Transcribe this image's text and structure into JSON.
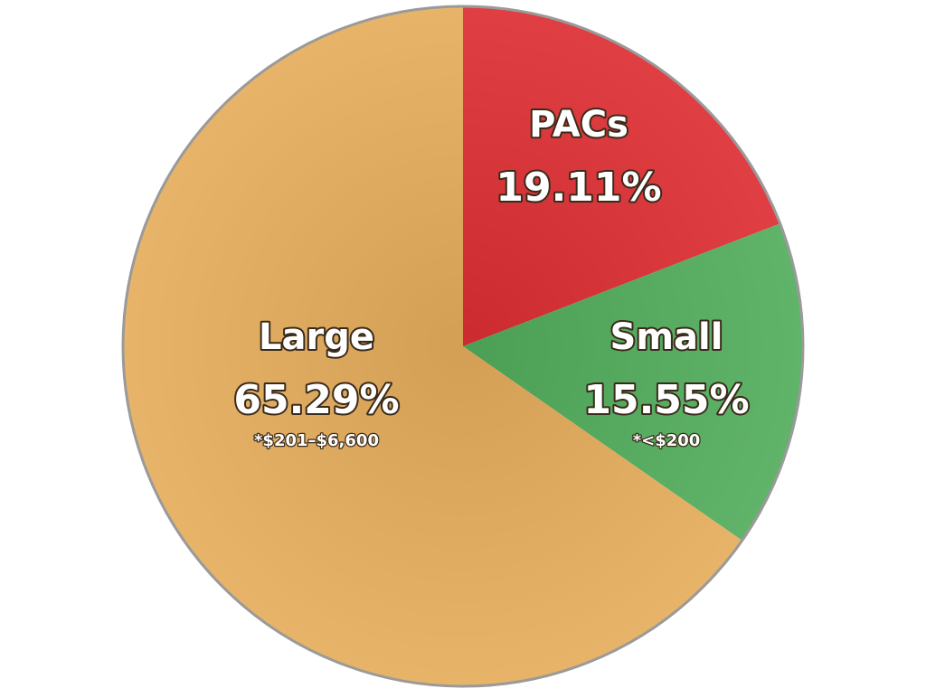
{
  "chart_data": {
    "type": "pie",
    "categories": [
      "PACs",
      "Small",
      "Large"
    ],
    "values": [
      19.11,
      15.55,
      65.29
    ],
    "value_labels": [
      "19.11%",
      "15.55%",
      "65.29%"
    ],
    "notes": [
      null,
      "*<$200",
      "*$201–$6,600"
    ],
    "colors": [
      "#dd2e33",
      "#52ad5c",
      "#e5ad5c"
    ],
    "start": "top",
    "direction": "clockwise"
  }
}
